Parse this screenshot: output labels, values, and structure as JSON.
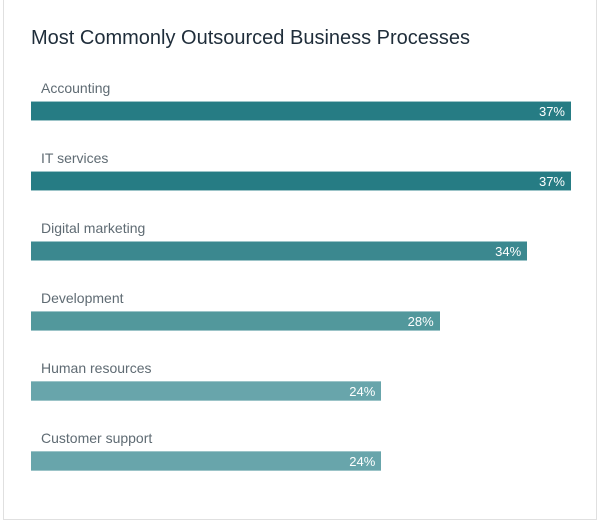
{
  "chart_data": {
    "type": "bar",
    "orientation": "horizontal",
    "title": "Most Commonly Outsourced Business Processes",
    "categories": [
      "Accounting",
      "IT services",
      "Digital marketing",
      "Development",
      "Human resources",
      "Customer support"
    ],
    "values": [
      37,
      37,
      34,
      28,
      24,
      24
    ],
    "labels": [
      "37%",
      "37%",
      "34%",
      "28%",
      "24%",
      "24%"
    ],
    "unit": "%",
    "xlim": [
      0,
      37
    ],
    "grid": false,
    "colors": [
      "#267c84",
      "#267c84",
      "#3b888f",
      "#52989c",
      "#68a5ab",
      "#68a5ab"
    ]
  }
}
